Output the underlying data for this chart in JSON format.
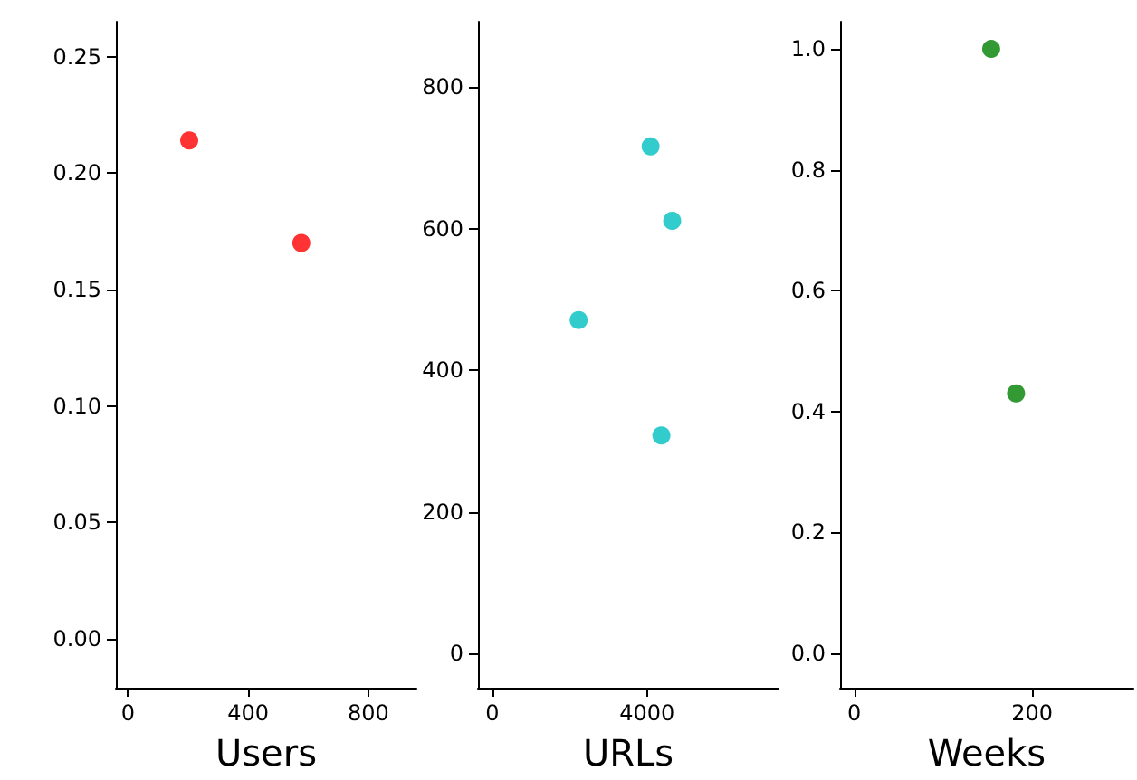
{
  "chart_data": [
    {
      "type": "scatter",
      "xlabel": "Users",
      "xlim": [
        -40,
        960
      ],
      "xticks": [
        0,
        400,
        800
      ],
      "ylim": [
        -0.021,
        0.265
      ],
      "yticks": [
        {
          "value": 0,
          "label": "0.00"
        },
        {
          "value": 0.05,
          "label": "0.05"
        },
        {
          "value": 0.1,
          "label": "0.10"
        },
        {
          "value": 0.15,
          "label": "0.15"
        },
        {
          "value": 0.2,
          "label": "0.20"
        },
        {
          "value": 0.25,
          "label": "0.25"
        }
      ],
      "grid": false,
      "marker": "circle",
      "series": [
        {
          "color": "#ff0000",
          "x": [
            204,
            577
          ],
          "values": [
            0.214,
            0.17
          ]
        }
      ]
    },
    {
      "type": "scatter",
      "xlabel": "URLs",
      "xlim": [
        -370,
        7400
      ],
      "xticks": [
        0,
        4000
      ],
      "ylim": [
        -48,
        892
      ],
      "yticks": [
        0,
        200,
        400,
        600,
        800
      ],
      "grid": false,
      "marker": "circle",
      "series": [
        {
          "color": "#00bfbf",
          "x": [
            4093,
            4651,
            2233,
            4372
          ],
          "values": [
            716,
            611,
            471,
            308
          ]
        }
      ]
    },
    {
      "type": "scatter",
      "xlabel": "Weeks",
      "xlim": [
        -16,
        314
      ],
      "xticks": [
        0,
        200
      ],
      "ylim": [
        -0.057,
        1.045
      ],
      "yticks": [
        {
          "value": 0,
          "label": "0.0"
        },
        {
          "value": 0.2,
          "label": "0.2"
        },
        {
          "value": 0.4,
          "label": "0.4"
        },
        {
          "value": 0.6,
          "label": "0.6"
        },
        {
          "value": 0.8,
          "label": "0.8"
        },
        {
          "value": 1,
          "label": "1.0"
        }
      ],
      "grid": false,
      "marker": "circle",
      "series": [
        {
          "color": "#008000",
          "x": [
            154,
            182
          ],
          "values": [
            1.0,
            0.43
          ]
        }
      ]
    }
  ]
}
